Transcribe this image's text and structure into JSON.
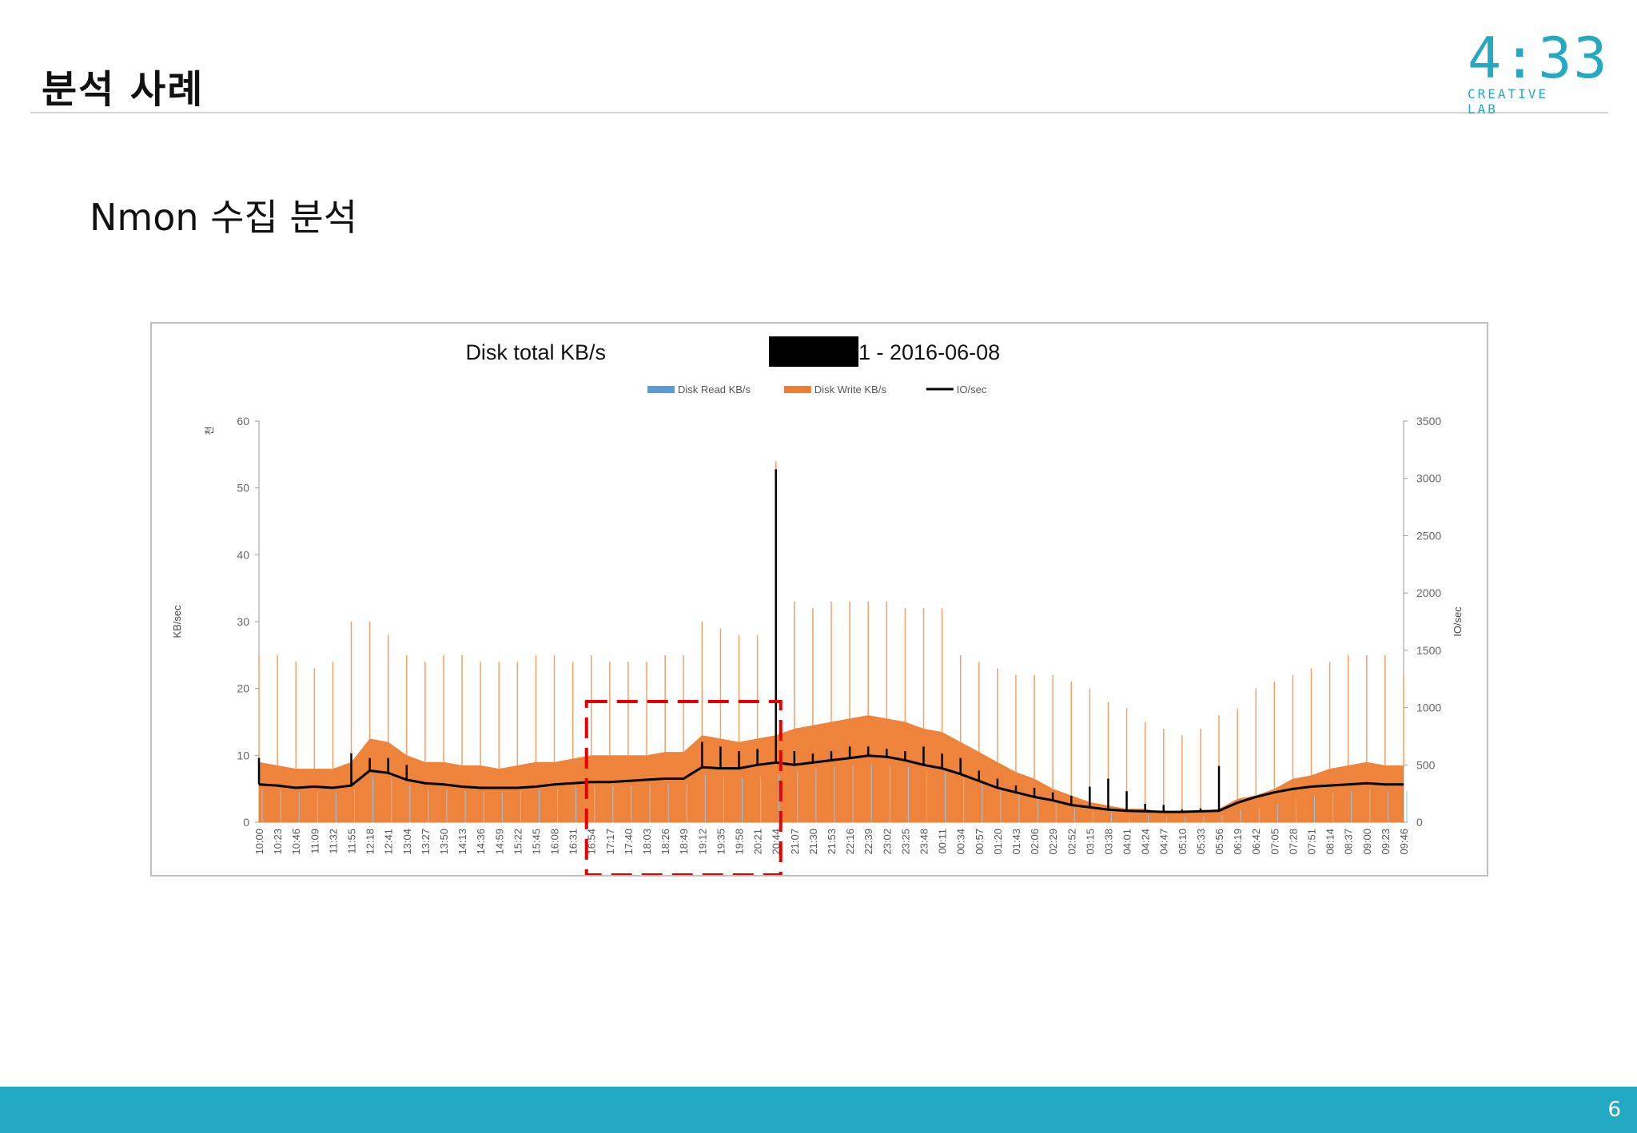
{
  "slide": {
    "title": "분석 사례",
    "subtitle": "Nmon 수집 분석",
    "page_number": "6"
  },
  "logo": {
    "digits": "4:33",
    "text": "CREATIVE LAB",
    "color": "#25a9c3"
  },
  "chart_data": {
    "type": "area",
    "title": "Disk total KB/s",
    "title_redacted": true,
    "title_suffix": "1 - 2016-06-08",
    "ylabel_left": "KB/sec",
    "ylabel_left_unit": "천",
    "ylabel_right": "IO/sec",
    "yticks_left": [
      "0",
      "10",
      "20",
      "30",
      "40",
      "50",
      "60"
    ],
    "yticks_right": [
      "0",
      "500",
      "1000",
      "1500",
      "2000",
      "2500",
      "3000",
      "3500"
    ],
    "ylim_left": [
      0,
      60
    ],
    "ylim_right": [
      0,
      3500
    ],
    "legend_position": "top-center",
    "grid": false,
    "legend": [
      {
        "name": "Disk Read KB/s",
        "color": "#5b9bd5",
        "kind": "bar"
      },
      {
        "name": "Disk Write KB/s",
        "color": "#ed7d31",
        "kind": "bar"
      },
      {
        "name": "IO/sec",
        "color": "#000000",
        "kind": "line"
      }
    ],
    "categories": [
      "10:00",
      "10:23",
      "10:46",
      "11:09",
      "11:32",
      "11:55",
      "12:18",
      "12:41",
      "13:04",
      "13:27",
      "13:50",
      "14:13",
      "14:36",
      "14:59",
      "15:22",
      "15:45",
      "16:08",
      "16:31",
      "16:54",
      "17:17",
      "17:40",
      "18:03",
      "18:26",
      "18:49",
      "19:12",
      "19:35",
      "19:58",
      "20:21",
      "20:44",
      "21:07",
      "21:30",
      "21:53",
      "22:16",
      "22:39",
      "23:02",
      "23:25",
      "23:48",
      "00:11",
      "00:34",
      "00:57",
      "01:20",
      "01:43",
      "02:06",
      "02:29",
      "02:52",
      "03:15",
      "03:38",
      "04:01",
      "04:24",
      "04:47",
      "05:10",
      "05:33",
      "05:56",
      "06:19",
      "06:42",
      "07:05",
      "07:28",
      "07:51",
      "08:14",
      "08:37",
      "09:00",
      "09:23",
      "09:46"
    ],
    "series": [
      {
        "name": "Disk Write KB/s",
        "axis": "left",
        "values": [
          9,
          8.5,
          8,
          8,
          8,
          9,
          12.5,
          12,
          10,
          9,
          9,
          8.5,
          8.5,
          8,
          8.5,
          9,
          9,
          9.5,
          10,
          10,
          10,
          10,
          10.5,
          10.5,
          13,
          12.5,
          12,
          12.5,
          13,
          14,
          14.5,
          15,
          15.5,
          16,
          15.5,
          15,
          14,
          13.5,
          12,
          10.5,
          9,
          7.5,
          6.5,
          5,
          4,
          3,
          2.5,
          2,
          2,
          1.5,
          1.5,
          1.5,
          2,
          3.5,
          4,
          5,
          6.5,
          7,
          8,
          8.5,
          9,
          8.5,
          8.5
        ]
      },
      {
        "name": "Disk Write KB/s peaks",
        "axis": "left",
        "values": [
          25,
          25,
          24,
          23,
          24,
          30,
          30,
          28,
          25,
          24,
          25,
          25,
          24,
          24,
          24,
          25,
          25,
          24,
          25,
          24,
          24,
          24,
          25,
          25,
          30,
          29,
          28,
          28,
          54,
          33,
          32,
          33,
          33,
          33,
          33,
          32,
          32,
          32,
          25,
          24,
          23,
          22,
          22,
          22,
          21,
          20,
          18,
          17,
          15,
          14,
          13,
          14,
          16,
          17,
          20,
          21,
          22,
          23,
          24,
          25,
          25,
          25,
          22
        ]
      },
      {
        "name": "IO/sec",
        "axis": "right",
        "values": [
          330,
          320,
          300,
          310,
          300,
          320,
          450,
          430,
          370,
          340,
          330,
          310,
          300,
          300,
          300,
          310,
          330,
          340,
          350,
          350,
          360,
          370,
          380,
          380,
          480,
          470,
          470,
          500,
          520,
          500,
          520,
          540,
          560,
          580,
          570,
          540,
          500,
          470,
          420,
          360,
          300,
          260,
          220,
          190,
          150,
          130,
          110,
          100,
          95,
          90,
          90,
          95,
          100,
          170,
          220,
          260,
          290,
          310,
          320,
          330,
          340,
          330,
          330
        ]
      },
      {
        "name": "IO/sec peaks",
        "axis": "right",
        "values": [
          560,
          0,
          0,
          0,
          0,
          600,
          560,
          560,
          500,
          0,
          0,
          0,
          0,
          0,
          0,
          0,
          0,
          0,
          0,
          0,
          0,
          0,
          0,
          0,
          700,
          660,
          620,
          640,
          3080,
          620,
          600,
          620,
          660,
          660,
          640,
          620,
          660,
          600,
          560,
          450,
          380,
          320,
          300,
          260,
          230,
          310,
          380,
          270,
          160,
          150,
          110,
          120,
          490,
          0,
          0,
          0,
          0,
          0,
          0,
          0,
          0,
          0,
          0
        ]
      }
    ],
    "highlight_box": {
      "from": "16:54",
      "to": "20:44",
      "color": "#e60000"
    }
  }
}
